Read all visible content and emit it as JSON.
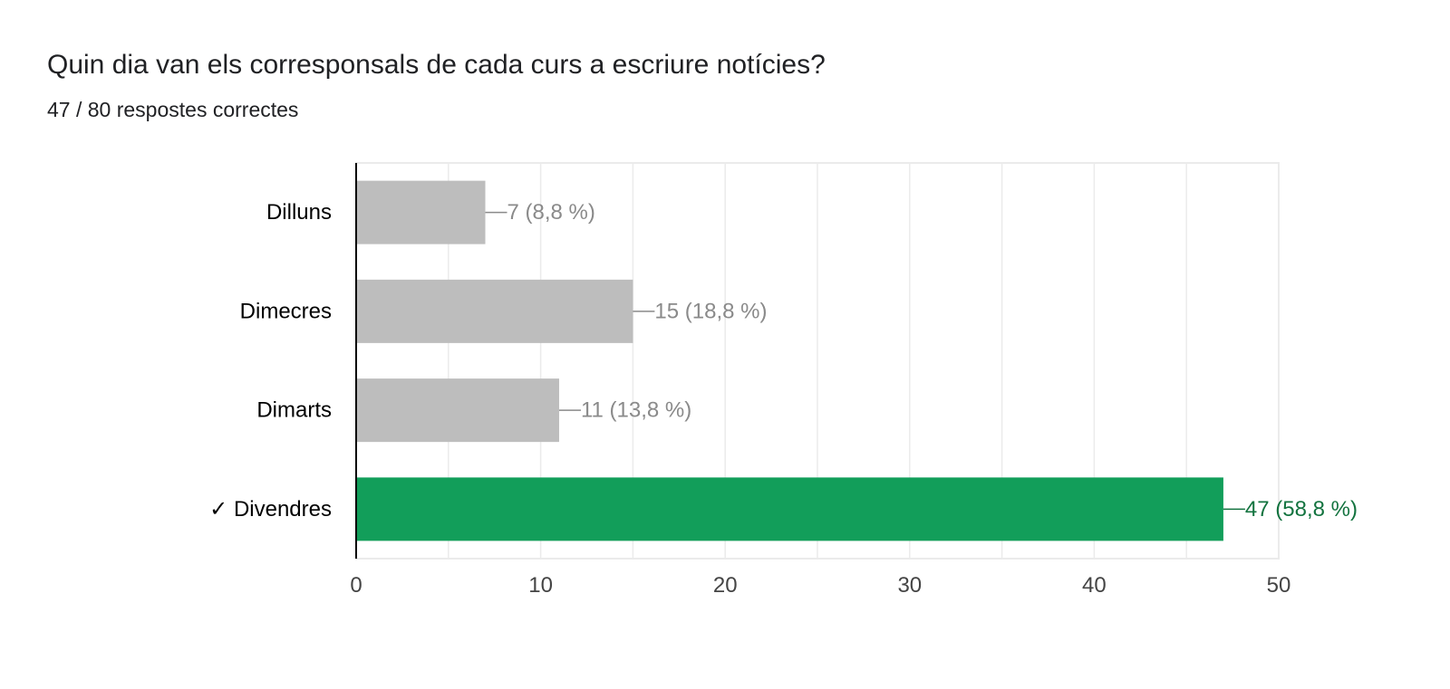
{
  "question": {
    "title": "Quin dia van els corresponsals de cada curs a escriure notícies?",
    "score_text": "47 / 80 respostes correctes"
  },
  "colors": {
    "bar_default": "#bdbdbd",
    "bar_correct": "#129e5a",
    "label_default": "#8a8a8a",
    "label_correct": "#13733f",
    "grid": "#ebebeb",
    "axis": "#000000"
  },
  "chart_data": {
    "type": "bar",
    "orientation": "horizontal",
    "categories": [
      "Dilluns",
      "Dimecres",
      "Dimarts",
      "✓ Divendres"
    ],
    "values": [
      7,
      15,
      11,
      47
    ],
    "data_labels": [
      "7 (8,8 %)",
      "15 (18,8 %)",
      "11 (13,8 %)",
      "47 (58,8 %)"
    ],
    "correct": [
      false,
      false,
      false,
      true
    ],
    "xlim": [
      0,
      50
    ],
    "xticks": [
      0,
      10,
      20,
      30,
      40,
      50
    ],
    "grid": true,
    "title": "",
    "xlabel": "",
    "ylabel": ""
  }
}
